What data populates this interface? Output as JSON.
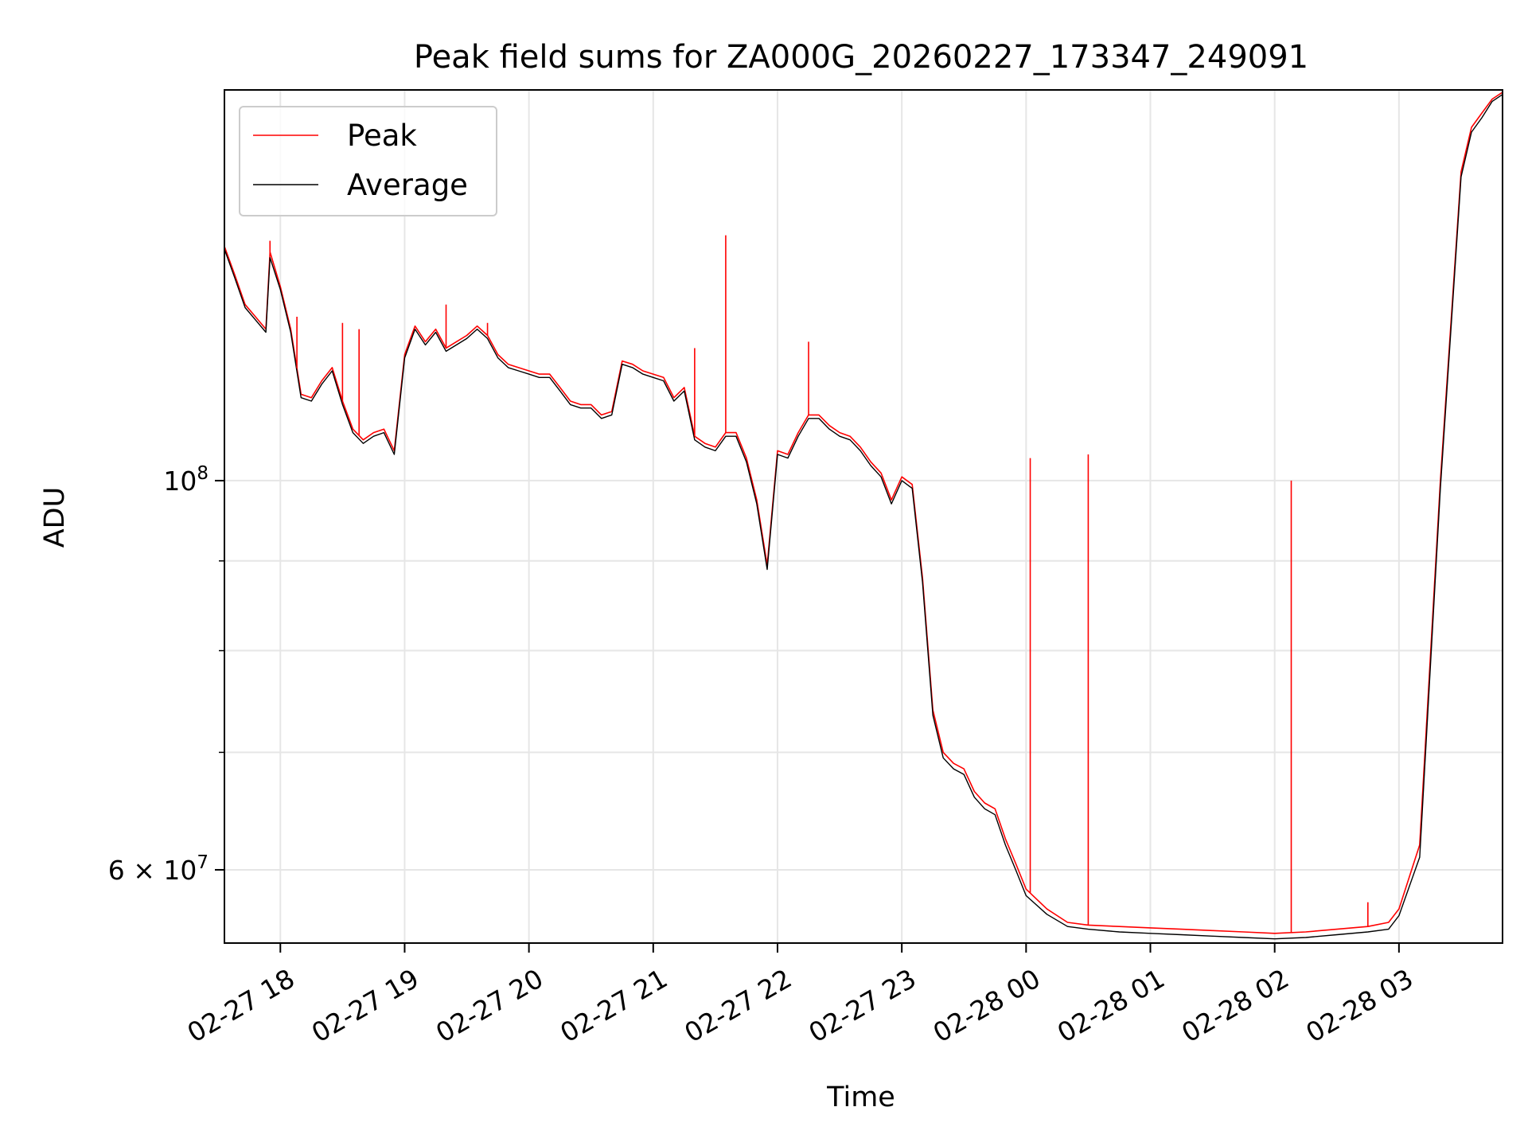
{
  "chart_data": {
    "type": "line",
    "title": "Peak field sums for ZA000G_20260227_173347_249091",
    "xlabel": "Time",
    "ylabel": "ADU",
    "y_scale": "log",
    "grid": true,
    "legend_position": "upper-left",
    "xlim": [
      "2026-02-27 17:33",
      "2026-02-28 03:50"
    ],
    "ylim": [
      54500000,
      167000000
    ],
    "x_ticks": [
      {
        "time": "2026-02-27 18:00",
        "label": "02-27 18"
      },
      {
        "time": "2026-02-27 19:00",
        "label": "02-27 19"
      },
      {
        "time": "2026-02-27 20:00",
        "label": "02-27 20"
      },
      {
        "time": "2026-02-27 21:00",
        "label": "02-27 21"
      },
      {
        "time": "2026-02-27 22:00",
        "label": "02-27 22"
      },
      {
        "time": "2026-02-27 23:00",
        "label": "02-27 23"
      },
      {
        "time": "2026-02-28 00:00",
        "label": "02-28 00"
      },
      {
        "time": "2026-02-28 01:00",
        "label": "02-28 01"
      },
      {
        "time": "2026-02-28 02:00",
        "label": "02-28 02"
      },
      {
        "time": "2026-02-28 03:00",
        "label": "02-28 03"
      }
    ],
    "y_major_ticks": [
      {
        "value": 100000000,
        "base": "10",
        "exp": "8"
      },
      {
        "value": 60000000,
        "base": "6 × 10",
        "exp": "7"
      }
    ],
    "y_minor_ticks": [
      70000000,
      80000000,
      90000000
    ],
    "series": [
      {
        "name": "Peak",
        "color": "#ff0000",
        "points": [
          [
            "2026-02-27 17:33",
            136000000
          ],
          [
            "2026-02-27 17:38",
            131000000
          ],
          [
            "2026-02-27 17:43",
            126000000
          ],
          [
            "2026-02-27 17:48",
            124000000
          ],
          [
            "2026-02-27 17:53",
            122000000
          ],
          [
            "2026-02-27 17:55",
            135000000
          ],
          [
            "2026-02-27 18:00",
            129000000
          ],
          [
            "2026-02-27 18:05",
            122000000
          ],
          [
            "2026-02-27 18:10",
            112000000
          ],
          [
            "2026-02-27 18:15",
            111500000
          ],
          [
            "2026-02-27 18:20",
            114000000
          ],
          [
            "2026-02-27 18:25",
            116000000
          ],
          [
            "2026-02-27 18:30",
            111000000
          ],
          [
            "2026-02-27 18:35",
            107000000
          ],
          [
            "2026-02-27 18:40",
            105500000
          ],
          [
            "2026-02-27 18:45",
            106500000
          ],
          [
            "2026-02-27 18:50",
            107000000
          ],
          [
            "2026-02-27 18:55",
            104000000
          ],
          [
            "2026-02-27 19:00",
            118000000
          ],
          [
            "2026-02-27 19:05",
            122500000
          ],
          [
            "2026-02-27 19:10",
            120000000
          ],
          [
            "2026-02-27 19:15",
            122000000
          ],
          [
            "2026-02-27 19:20",
            119000000
          ],
          [
            "2026-02-27 19:25",
            120000000
          ],
          [
            "2026-02-27 19:30",
            121000000
          ],
          [
            "2026-02-27 19:35",
            122500000
          ],
          [
            "2026-02-27 19:40",
            121000000
          ],
          [
            "2026-02-27 19:45",
            118000000
          ],
          [
            "2026-02-27 19:50",
            116500000
          ],
          [
            "2026-02-27 19:55",
            116000000
          ],
          [
            "2026-02-27 20:00",
            115500000
          ],
          [
            "2026-02-27 20:05",
            115000000
          ],
          [
            "2026-02-27 20:10",
            115000000
          ],
          [
            "2026-02-27 20:15",
            113000000
          ],
          [
            "2026-02-27 20:20",
            111000000
          ],
          [
            "2026-02-27 20:25",
            110500000
          ],
          [
            "2026-02-27 20:30",
            110500000
          ],
          [
            "2026-02-27 20:35",
            109000000
          ],
          [
            "2026-02-27 20:40",
            109500000
          ],
          [
            "2026-02-27 20:45",
            117000000
          ],
          [
            "2026-02-27 20:50",
            116500000
          ],
          [
            "2026-02-27 20:55",
            115500000
          ],
          [
            "2026-02-27 21:00",
            115000000
          ],
          [
            "2026-02-27 21:05",
            114500000
          ],
          [
            "2026-02-27 21:10",
            111500000
          ],
          [
            "2026-02-27 21:15",
            113000000
          ],
          [
            "2026-02-27 21:20",
            106000000
          ],
          [
            "2026-02-27 21:25",
            105000000
          ],
          [
            "2026-02-27 21:30",
            104500000
          ],
          [
            "2026-02-27 21:35",
            106500000
          ],
          [
            "2026-02-27 21:40",
            106500000
          ],
          [
            "2026-02-27 21:45",
            103000000
          ],
          [
            "2026-02-27 21:50",
            97500000
          ],
          [
            "2026-02-27 21:55",
            89500000
          ],
          [
            "2026-02-27 22:00",
            104000000
          ],
          [
            "2026-02-27 22:05",
            103500000
          ],
          [
            "2026-02-27 22:10",
            106500000
          ],
          [
            "2026-02-27 22:15",
            109000000
          ],
          [
            "2026-02-27 22:20",
            109000000
          ],
          [
            "2026-02-27 22:25",
            107500000
          ],
          [
            "2026-02-27 22:30",
            106500000
          ],
          [
            "2026-02-27 22:35",
            106000000
          ],
          [
            "2026-02-27 22:40",
            104500000
          ],
          [
            "2026-02-27 22:45",
            102500000
          ],
          [
            "2026-02-27 22:50",
            101000000
          ],
          [
            "2026-02-27 22:55",
            97500000
          ],
          [
            "2026-02-27 23:00",
            100500000
          ],
          [
            "2026-02-27 23:05",
            99500000
          ],
          [
            "2026-02-27 23:10",
            88000000
          ],
          [
            "2026-02-27 23:15",
            74000000
          ],
          [
            "2026-02-27 23:20",
            70000000
          ],
          [
            "2026-02-27 23:25",
            69000000
          ],
          [
            "2026-02-27 23:30",
            68500000
          ],
          [
            "2026-02-27 23:35",
            66500000
          ],
          [
            "2026-02-27 23:40",
            65500000
          ],
          [
            "2026-02-27 23:45",
            65000000
          ],
          [
            "2026-02-27 23:50",
            62500000
          ],
          [
            "2026-02-27 23:55",
            60500000
          ],
          [
            "2026-02-28 00:00",
            58500000
          ],
          [
            "2026-02-28 00:10",
            57000000
          ],
          [
            "2026-02-28 00:20",
            56000000
          ],
          [
            "2026-02-28 00:30",
            55800000
          ],
          [
            "2026-02-28 00:45",
            55700000
          ],
          [
            "2026-02-28 01:00",
            55600000
          ],
          [
            "2026-02-28 01:15",
            55500000
          ],
          [
            "2026-02-28 01:30",
            55400000
          ],
          [
            "2026-02-28 01:45",
            55300000
          ],
          [
            "2026-02-28 02:00",
            55200000
          ],
          [
            "2026-02-28 02:15",
            55300000
          ],
          [
            "2026-02-28 02:30",
            55500000
          ],
          [
            "2026-02-28 02:45",
            55700000
          ],
          [
            "2026-02-28 02:55",
            56000000
          ],
          [
            "2026-02-28 03:00",
            57000000
          ],
          [
            "2026-02-28 03:10",
            62000000
          ],
          [
            "2026-02-28 03:20",
            100000000
          ],
          [
            "2026-02-28 03:30",
            150000000
          ],
          [
            "2026-02-28 03:35",
            159000000
          ],
          [
            "2026-02-28 03:40",
            162000000
          ],
          [
            "2026-02-28 03:45",
            165000000
          ],
          [
            "2026-02-28 03:50",
            166500000
          ]
        ],
        "spikes": [
          [
            "2026-02-27 17:55",
            137000000
          ],
          [
            "2026-02-27 18:08",
            124000000
          ],
          [
            "2026-02-27 18:30",
            123000000
          ],
          [
            "2026-02-27 18:38",
            122000000
          ],
          [
            "2026-02-27 19:20",
            126000000
          ],
          [
            "2026-02-27 19:40",
            123000000
          ],
          [
            "2026-02-27 21:20",
            119000000
          ],
          [
            "2026-02-27 21:35",
            138000000
          ],
          [
            "2026-02-27 22:15",
            120000000
          ],
          [
            "2026-02-28 00:02",
            103000000
          ],
          [
            "2026-02-28 00:30",
            103500000
          ],
          [
            "2026-02-28 02:08",
            100000000
          ],
          [
            "2026-02-28 02:45",
            57500000
          ]
        ]
      },
      {
        "name": "Average",
        "color": "#000000",
        "points": [
          [
            "2026-02-27 17:33",
            135500000
          ],
          [
            "2026-02-27 17:38",
            130500000
          ],
          [
            "2026-02-27 17:43",
            125500000
          ],
          [
            "2026-02-27 17:48",
            123500000
          ],
          [
            "2026-02-27 17:53",
            121500000
          ],
          [
            "2026-02-27 17:55",
            134000000
          ],
          [
            "2026-02-27 18:00",
            128500000
          ],
          [
            "2026-02-27 18:05",
            121500000
          ],
          [
            "2026-02-27 18:10",
            111500000
          ],
          [
            "2026-02-27 18:15",
            111000000
          ],
          [
            "2026-02-27 18:20",
            113500000
          ],
          [
            "2026-02-27 18:25",
            115500000
          ],
          [
            "2026-02-27 18:30",
            110500000
          ],
          [
            "2026-02-27 18:35",
            106500000
          ],
          [
            "2026-02-27 18:40",
            105000000
          ],
          [
            "2026-02-27 18:45",
            106000000
          ],
          [
            "2026-02-27 18:50",
            106500000
          ],
          [
            "2026-02-27 18:55",
            103500000
          ],
          [
            "2026-02-27 19:00",
            117500000
          ],
          [
            "2026-02-27 19:05",
            122000000
          ],
          [
            "2026-02-27 19:10",
            119500000
          ],
          [
            "2026-02-27 19:15",
            121500000
          ],
          [
            "2026-02-27 19:20",
            118500000
          ],
          [
            "2026-02-27 19:25",
            119500000
          ],
          [
            "2026-02-27 19:30",
            120500000
          ],
          [
            "2026-02-27 19:35",
            122000000
          ],
          [
            "2026-02-27 19:40",
            120500000
          ],
          [
            "2026-02-27 19:45",
            117500000
          ],
          [
            "2026-02-27 19:50",
            116000000
          ],
          [
            "2026-02-27 19:55",
            115500000
          ],
          [
            "2026-02-27 20:00",
            115000000
          ],
          [
            "2026-02-27 20:05",
            114500000
          ],
          [
            "2026-02-27 20:10",
            114500000
          ],
          [
            "2026-02-27 20:15",
            112500000
          ],
          [
            "2026-02-27 20:20",
            110500000
          ],
          [
            "2026-02-27 20:25",
            110000000
          ],
          [
            "2026-02-27 20:30",
            110000000
          ],
          [
            "2026-02-27 20:35",
            108500000
          ],
          [
            "2026-02-27 20:40",
            109000000
          ],
          [
            "2026-02-27 20:45",
            116500000
          ],
          [
            "2026-02-27 20:50",
            116000000
          ],
          [
            "2026-02-27 20:55",
            115000000
          ],
          [
            "2026-02-27 21:00",
            114500000
          ],
          [
            "2026-02-27 21:05",
            114000000
          ],
          [
            "2026-02-27 21:10",
            111000000
          ],
          [
            "2026-02-27 21:15",
            112500000
          ],
          [
            "2026-02-27 21:20",
            105500000
          ],
          [
            "2026-02-27 21:25",
            104500000
          ],
          [
            "2026-02-27 21:30",
            104000000
          ],
          [
            "2026-02-27 21:35",
            106000000
          ],
          [
            "2026-02-27 21:40",
            106000000
          ],
          [
            "2026-02-27 21:45",
            102500000
          ],
          [
            "2026-02-27 21:50",
            97000000
          ],
          [
            "2026-02-27 21:55",
            89000000
          ],
          [
            "2026-02-27 22:00",
            103500000
          ],
          [
            "2026-02-27 22:05",
            103000000
          ],
          [
            "2026-02-27 22:10",
            106000000
          ],
          [
            "2026-02-27 22:15",
            108500000
          ],
          [
            "2026-02-27 22:20",
            108500000
          ],
          [
            "2026-02-27 22:25",
            107000000
          ],
          [
            "2026-02-27 22:30",
            106000000
          ],
          [
            "2026-02-27 22:35",
            105500000
          ],
          [
            "2026-02-27 22:40",
            104000000
          ],
          [
            "2026-02-27 22:45",
            102000000
          ],
          [
            "2026-02-27 22:50",
            100500000
          ],
          [
            "2026-02-27 22:55",
            97000000
          ],
          [
            "2026-02-27 23:00",
            100000000
          ],
          [
            "2026-02-27 23:05",
            99000000
          ],
          [
            "2026-02-27 23:10",
            87500000
          ],
          [
            "2026-02-27 23:15",
            73500000
          ],
          [
            "2026-02-27 23:20",
            69500000
          ],
          [
            "2026-02-27 23:25",
            68500000
          ],
          [
            "2026-02-27 23:30",
            68000000
          ],
          [
            "2026-02-27 23:35",
            66000000
          ],
          [
            "2026-02-27 23:40",
            65000000
          ],
          [
            "2026-02-27 23:45",
            64500000
          ],
          [
            "2026-02-27 23:50",
            62000000
          ],
          [
            "2026-02-27 23:55",
            60000000
          ],
          [
            "2026-02-28 00:00",
            58000000
          ],
          [
            "2026-02-28 00:10",
            56600000
          ],
          [
            "2026-02-28 00:20",
            55700000
          ],
          [
            "2026-02-28 00:30",
            55500000
          ],
          [
            "2026-02-28 00:45",
            55300000
          ],
          [
            "2026-02-28 01:00",
            55200000
          ],
          [
            "2026-02-28 01:15",
            55100000
          ],
          [
            "2026-02-28 01:30",
            55000000
          ],
          [
            "2026-02-28 01:45",
            54900000
          ],
          [
            "2026-02-28 02:00",
            54800000
          ],
          [
            "2026-02-28 02:15",
            54900000
          ],
          [
            "2026-02-28 02:30",
            55100000
          ],
          [
            "2026-02-28 02:45",
            55300000
          ],
          [
            "2026-02-28 02:55",
            55500000
          ],
          [
            "2026-02-28 03:00",
            56500000
          ],
          [
            "2026-02-28 03:10",
            61000000
          ],
          [
            "2026-02-28 03:20",
            99000000
          ],
          [
            "2026-02-28 03:30",
            149000000
          ],
          [
            "2026-02-28 03:35",
            158000000
          ],
          [
            "2026-02-28 03:40",
            161000000
          ],
          [
            "2026-02-28 03:45",
            164500000
          ],
          [
            "2026-02-28 03:50",
            166000000
          ]
        ]
      }
    ]
  }
}
